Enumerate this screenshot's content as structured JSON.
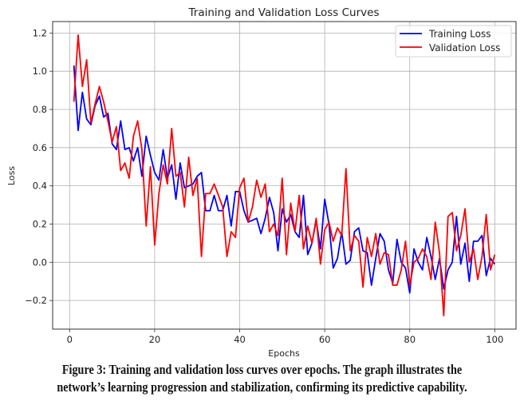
{
  "figure": {
    "caption_line1": "Figure 3: Training and validation loss curves over epochs. The graph illustrates the",
    "caption_line2": "network’s learning progression and stabilization, confirming its predictive capability."
  },
  "chart_data": {
    "type": "line",
    "title": "Training and Validation Loss Curves",
    "xlabel": "Epochs",
    "ylabel": "Loss",
    "xlim": [
      -4,
      105
    ],
    "ylim": [
      -0.35,
      1.26
    ],
    "xticks": [
      0,
      20,
      40,
      60,
      80,
      100
    ],
    "xtick_labels": [
      "0",
      "20",
      "40",
      "60",
      "80",
      "100"
    ],
    "yticks": [
      -0.2,
      0.0,
      0.2,
      0.4,
      0.6,
      0.8,
      1.0,
      1.2
    ],
    "ytick_labels": [
      "−0.2",
      "0.0",
      "0.2",
      "0.4",
      "0.6",
      "0.8",
      "1.0",
      "1.2"
    ],
    "grid": true,
    "legend_position": "top-right",
    "x": [
      1,
      2,
      3,
      4,
      5,
      6,
      7,
      8,
      9,
      10,
      11,
      12,
      13,
      14,
      15,
      16,
      17,
      18,
      19,
      20,
      21,
      22,
      23,
      24,
      25,
      26,
      27,
      28,
      29,
      30,
      31,
      32,
      33,
      34,
      35,
      36,
      37,
      38,
      39,
      40,
      41,
      42,
      43,
      44,
      45,
      46,
      47,
      48,
      49,
      50,
      51,
      52,
      53,
      54,
      55,
      56,
      57,
      58,
      59,
      60,
      61,
      62,
      63,
      64,
      65,
      66,
      67,
      68,
      69,
      70,
      71,
      72,
      73,
      74,
      75,
      76,
      77,
      78,
      79,
      80,
      81,
      82,
      83,
      84,
      85,
      86,
      87,
      88,
      89,
      90,
      91,
      92,
      93,
      94,
      95,
      96,
      97,
      98,
      99,
      100
    ],
    "series": [
      {
        "name": "Training Loss",
        "color": "#0000ff",
        "values": [
          1.03,
          0.69,
          0.89,
          0.75,
          0.72,
          0.82,
          0.87,
          0.76,
          0.78,
          0.62,
          0.59,
          0.74,
          0.59,
          0.6,
          0.53,
          0.6,
          0.45,
          0.66,
          0.56,
          0.47,
          0.43,
          0.59,
          0.44,
          0.51,
          0.33,
          0.52,
          0.39,
          0.4,
          0.41,
          0.45,
          0.47,
          0.27,
          0.27,
          0.35,
          0.27,
          0.27,
          0.35,
          0.19,
          0.37,
          0.37,
          0.27,
          0.21,
          0.22,
          0.23,
          0.15,
          0.23,
          0.34,
          0.26,
          0.06,
          0.28,
          0.21,
          0.25,
          0.16,
          0.13,
          0.35,
          0.04,
          0.1,
          0.22,
          0.07,
          0.33,
          0.2,
          -0.03,
          0.02,
          0.16,
          -0.01,
          0.01,
          0.16,
          0.18,
          0.06,
          0.05,
          -0.12,
          0.02,
          0.15,
          0.11,
          -0.04,
          -0.11,
          0.12,
          0.0,
          -0.03,
          -0.16,
          0.07,
          0.0,
          -0.04,
          0.13,
          0.03,
          -0.09,
          0.02,
          -0.14,
          -0.04,
          0.0,
          0.24,
          -0.01,
          0.1,
          -0.1,
          0.11,
          0.11,
          0.14,
          -0.07,
          0.02,
          -0.01
        ]
      },
      {
        "name": "Validation Loss",
        "color": "#ff0000",
        "values": [
          0.84,
          1.19,
          0.92,
          1.06,
          0.73,
          0.83,
          0.92,
          0.84,
          0.74,
          0.63,
          0.71,
          0.48,
          0.52,
          0.44,
          0.66,
          0.74,
          0.59,
          0.19,
          0.5,
          0.09,
          0.36,
          0.51,
          0.41,
          0.7,
          0.45,
          0.47,
          0.29,
          0.55,
          0.35,
          0.44,
          0.03,
          0.36,
          0.36,
          0.41,
          0.35,
          0.29,
          0.03,
          0.16,
          0.13,
          0.39,
          0.44,
          0.21,
          0.29,
          0.43,
          0.34,
          0.41,
          0.16,
          0.2,
          0.14,
          0.44,
          0.04,
          0.31,
          0.16,
          0.35,
          0.07,
          0.19,
          0.1,
          0.23,
          -0.01,
          0.17,
          0.21,
          0.11,
          0.18,
          0.14,
          0.49,
          0.06,
          0.14,
          0.11,
          -0.13,
          0.13,
          0.03,
          0.15,
          -0.01,
          0.05,
          0.04,
          -0.12,
          -0.12,
          -0.04,
          0.11,
          -0.12,
          0.0,
          0.02,
          0.07,
          0.03,
          -0.09,
          0.21,
          0.05,
          -0.28,
          0.24,
          0.26,
          0.06,
          0.14,
          0.28,
          0.0,
          0.07,
          -0.09,
          0.03,
          0.25,
          -0.04,
          0.04
        ]
      }
    ]
  }
}
